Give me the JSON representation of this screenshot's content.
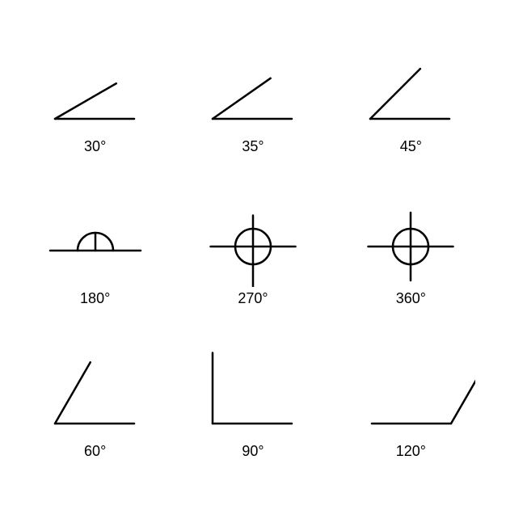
{
  "figure": {
    "type": "infographic",
    "background_color": "#ffffff",
    "stroke_color": "#000000",
    "stroke_width": 2.5,
    "label_fontsize": 18,
    "label_color": "#000000",
    "grid_rows": 3,
    "grid_cols": 3,
    "ray_length": 70,
    "arc_radius": 22,
    "angles": [
      {
        "id": "angle-30",
        "label": "30°",
        "value": 30,
        "kind": "acute"
      },
      {
        "id": "angle-35",
        "label": "35°",
        "value": 35,
        "kind": "acute"
      },
      {
        "id": "angle-45",
        "label": "45°",
        "value": 45,
        "kind": "acute"
      },
      {
        "id": "angle-180",
        "label": "180°",
        "value": 180,
        "kind": "straight"
      },
      {
        "id": "angle-270",
        "label": "270°",
        "value": 270,
        "kind": "reflex"
      },
      {
        "id": "angle-360",
        "label": "360°",
        "value": 360,
        "kind": "full"
      },
      {
        "id": "angle-60",
        "label": "60°",
        "value": 60,
        "kind": "acute"
      },
      {
        "id": "angle-90",
        "label": "90°",
        "value": 90,
        "kind": "right"
      },
      {
        "id": "angle-120",
        "label": "120°",
        "value": 120,
        "kind": "obtuse"
      }
    ]
  }
}
